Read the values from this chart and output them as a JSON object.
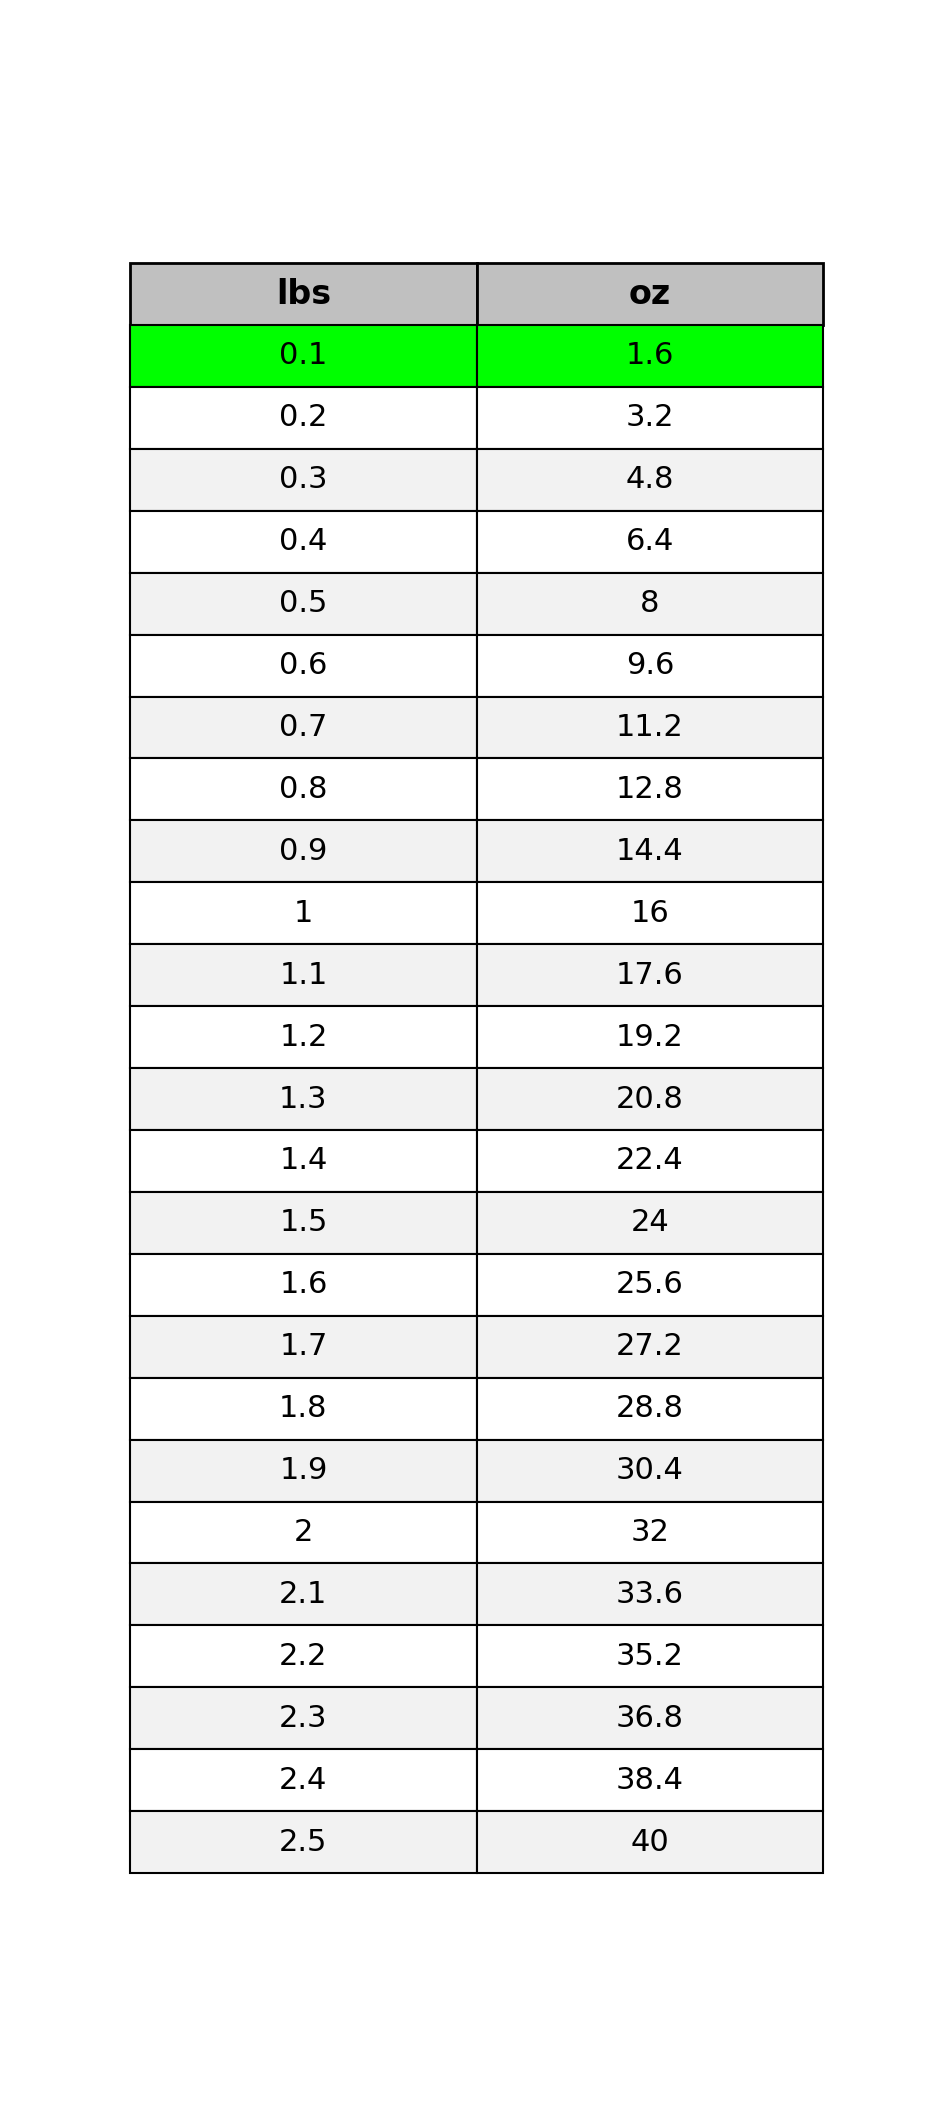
{
  "col_headers": [
    "lbs",
    "oz"
  ],
  "rows": [
    [
      "0.1",
      "1.6"
    ],
    [
      "0.2",
      "3.2"
    ],
    [
      "0.3",
      "4.8"
    ],
    [
      "0.4",
      "6.4"
    ],
    [
      "0.5",
      "8"
    ],
    [
      "0.6",
      "9.6"
    ],
    [
      "0.7",
      "11.2"
    ],
    [
      "0.8",
      "12.8"
    ],
    [
      "0.9",
      "14.4"
    ],
    [
      "1",
      "16"
    ],
    [
      "1.1",
      "17.6"
    ],
    [
      "1.2",
      "19.2"
    ],
    [
      "1.3",
      "20.8"
    ],
    [
      "1.4",
      "22.4"
    ],
    [
      "1.5",
      "24"
    ],
    [
      "1.6",
      "25.6"
    ],
    [
      "1.7",
      "27.2"
    ],
    [
      "1.8",
      "28.8"
    ],
    [
      "1.9",
      "30.4"
    ],
    [
      "2",
      "32"
    ],
    [
      "2.1",
      "33.6"
    ],
    [
      "2.2",
      "35.2"
    ],
    [
      "2.3",
      "36.8"
    ],
    [
      "2.4",
      "38.4"
    ],
    [
      "2.5",
      "40"
    ]
  ],
  "header_bg": "#c0c0c0",
  "highlight_row_bg": "#00ff00",
  "odd_row_bg": "#ffffff",
  "even_row_bg": "#f2f2f2",
  "border_color": "#000000",
  "header_font_size": 24,
  "cell_font_size": 22,
  "text_color": "#000000",
  "header_font_weight": "bold",
  "cell_font_weight": "normal"
}
